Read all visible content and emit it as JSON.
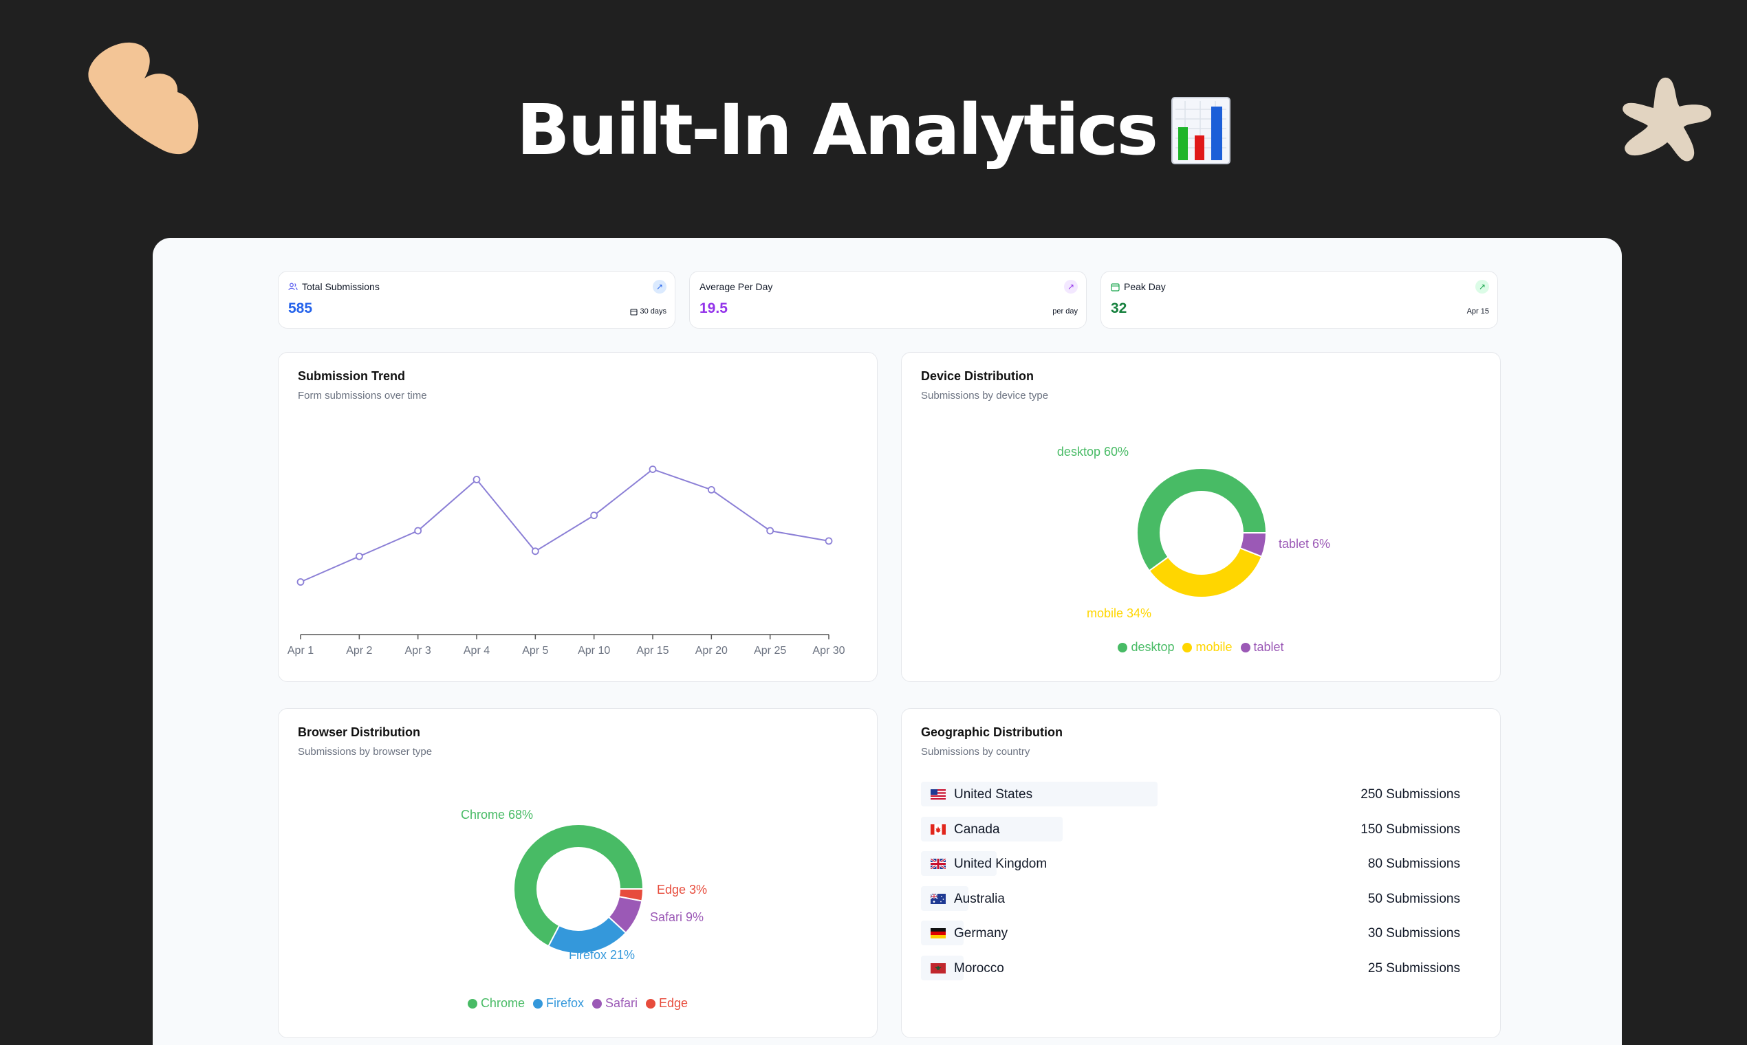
{
  "hero": {
    "title": "Built-In Analytics",
    "icon": "bar-chart-emoji-icon"
  },
  "stats": [
    {
      "label": "Total Submissions",
      "value": "585",
      "footer": "30 days",
      "icon": "users-icon",
      "color": "#2563eb"
    },
    {
      "label": "Average Per Day",
      "value": "19.5",
      "footer": "per day",
      "icon": "",
      "color": "#9333ea"
    },
    {
      "label": "Peak Day",
      "value": "32",
      "footer": "Apr 15",
      "icon": "calendar-icon",
      "color": "#15803d"
    }
  ],
  "trend": {
    "title": "Submission Trend",
    "subtitle": "Form submissions over time"
  },
  "device": {
    "title": "Device Distribution",
    "subtitle": "Submissions by device type"
  },
  "browser": {
    "title": "Browser Distribution",
    "subtitle": "Submissions by browser type"
  },
  "geo": {
    "title": "Geographic Distribution",
    "subtitle": "Submissions by country",
    "rows": [
      {
        "country": "United States",
        "count": "250 Submissions",
        "value": 250,
        "flag": "us-flag-icon"
      },
      {
        "country": "Canada",
        "count": "150 Submissions",
        "value": 150,
        "flag": "ca-flag-icon"
      },
      {
        "country": "United Kingdom",
        "count": "80 Submissions",
        "value": 80,
        "flag": "gb-flag-icon"
      },
      {
        "country": "Australia",
        "count": "50 Submissions",
        "value": 50,
        "flag": "au-flag-icon"
      },
      {
        "country": "Germany",
        "count": "30 Submissions",
        "value": 30,
        "flag": "de-flag-icon"
      },
      {
        "country": "Morocco",
        "count": "25 Submissions",
        "value": 25,
        "flag": "ma-flag-icon"
      }
    ]
  },
  "chart_data": [
    {
      "type": "line",
      "title": "Submission Trend",
      "subtitle": "Form submissions over time",
      "categories": [
        "Apr 1",
        "Apr 2",
        "Apr 3",
        "Apr 4",
        "Apr 5",
        "Apr 10",
        "Apr 15",
        "Apr 20",
        "Apr 25",
        "Apr 30"
      ],
      "series": [
        {
          "values": [
            10,
            15,
            20,
            30,
            16,
            23,
            32,
            28,
            20,
            18
          ]
        }
      ],
      "ylim": [
        0,
        40
      ],
      "grid": false,
      "color": "#8b7fd6"
    },
    {
      "type": "pie",
      "title": "Device Distribution",
      "subtitle": "Submissions by device type",
      "categories": [
        "desktop",
        "mobile",
        "tablet"
      ],
      "values": [
        60,
        34,
        6
      ],
      "colors": [
        "#48bb65",
        "#ffd600",
        "#9b59b6"
      ],
      "legend": "bottom"
    },
    {
      "type": "pie",
      "title": "Browser Distribution",
      "subtitle": "Submissions by browser type",
      "categories": [
        "Chrome",
        "Firefox",
        "Safari",
        "Edge"
      ],
      "values": [
        68,
        21,
        9,
        3
      ],
      "colors": [
        "#48bb65",
        "#3498db",
        "#9b59b6",
        "#e74c3c"
      ],
      "legend": "bottom"
    }
  ]
}
